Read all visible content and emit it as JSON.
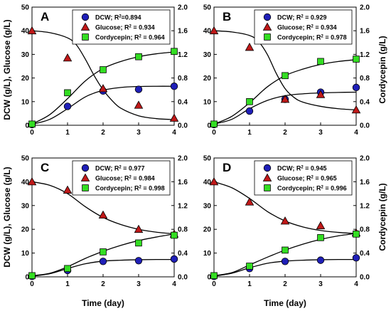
{
  "figure": {
    "left_axis_label": "DCW (g/L), Glucose (g/L)",
    "right_axis_label": "Cordycepin (g/L)",
    "x_axis_label": "Time (day)"
  },
  "colors": {
    "dcw": "#1f1fb8",
    "glucose": "#c01818",
    "cordycepin": "#33dd22",
    "line": "#000000"
  },
  "chart_data": [
    {
      "type": "scatter",
      "panel": "A",
      "xlabel": "Time (day)",
      "ylabel": "DCW (g/L), Glucose (g/L)",
      "y2label": "Cordycepin (g/L)",
      "xlim": [
        0,
        4
      ],
      "ylim": [
        0,
        50
      ],
      "y2lim": [
        0,
        2.0
      ],
      "x_ticks": [
        "0",
        "1",
        "2",
        "3",
        "4"
      ],
      "y_ticks": [
        "0",
        "10",
        "20",
        "30",
        "40",
        "50"
      ],
      "y2_ticks": [
        "0.0",
        "0.4",
        "0.8",
        "1.2",
        "1.6",
        "2.0"
      ],
      "legend_position": "top-right",
      "series": [
        {
          "key": "dcw",
          "name": "DCW; R2=0.894",
          "axis": "left",
          "marker": "circle",
          "x": [
            0,
            1,
            2,
            3,
            4
          ],
          "values": [
            0.3,
            8,
            14.5,
            15.2,
            16.5
          ],
          "fit": [
            [
              0,
              0.4
            ],
            [
              0.5,
              2.5
            ],
            [
              1,
              7
            ],
            [
              1.5,
              12
            ],
            [
              2,
              14.8
            ],
            [
              2.5,
              16
            ],
            [
              3,
              16.4
            ],
            [
              3.5,
              16.5
            ],
            [
              4,
              16.5
            ]
          ]
        },
        {
          "key": "glucose",
          "name": "Glucose; R2 = 0.934",
          "axis": "left",
          "marker": "triangle",
          "x": [
            0,
            1,
            2,
            3,
            4
          ],
          "values": [
            40,
            28.5,
            15.5,
            8.5,
            3
          ],
          "fit": [
            [
              0,
              40
            ],
            [
              0.5,
              39.2
            ],
            [
              1,
              37
            ],
            [
              1.25,
              34
            ],
            [
              1.5,
              28
            ],
            [
              1.75,
              21
            ],
            [
              2,
              15
            ],
            [
              2.25,
              10.5
            ],
            [
              2.5,
              7.2
            ],
            [
              3,
              4
            ],
            [
              3.5,
              2.8
            ],
            [
              4,
              2.4
            ]
          ]
        },
        {
          "key": "cordycepin",
          "name": "Cordycepin; R2 = 0.964",
          "axis": "right",
          "marker": "square",
          "x": [
            0,
            1,
            2,
            3,
            4
          ],
          "values": [
            0.02,
            0.55,
            0.94,
            1.16,
            1.25
          ],
          "fit": [
            [
              0,
              0.02
            ],
            [
              0.5,
              0.18
            ],
            [
              1,
              0.45
            ],
            [
              1.5,
              0.75
            ],
            [
              2,
              0.96
            ],
            [
              2.5,
              1.08
            ],
            [
              3,
              1.16
            ],
            [
              3.5,
              1.21
            ],
            [
              4,
              1.24
            ]
          ]
        }
      ]
    },
    {
      "type": "scatter",
      "panel": "B",
      "xlabel": "Time (day)",
      "ylabel": "DCW (g/L), Glucose (g/L)",
      "y2label": "Cordycepin (g/L)",
      "xlim": [
        0,
        4
      ],
      "ylim": [
        0,
        50
      ],
      "y2lim": [
        0,
        2.0
      ],
      "x_ticks": [
        "0",
        "1",
        "2",
        "3",
        "4"
      ],
      "y_ticks": [
        "0",
        "10",
        "20",
        "30",
        "40",
        "50"
      ],
      "y2_ticks": [
        "0.0",
        "0.4",
        "0.8",
        "1.2",
        "1.6",
        "2.0"
      ],
      "legend_position": "top-right",
      "series": [
        {
          "key": "dcw",
          "name": "DCW; R2 = 0.929",
          "axis": "left",
          "marker": "circle",
          "x": [
            0,
            1,
            2,
            3,
            4
          ],
          "values": [
            0.3,
            6,
            11,
            14,
            16
          ],
          "fit": [
            [
              0,
              0.5
            ],
            [
              0.5,
              2.5
            ],
            [
              1,
              7
            ],
            [
              1.5,
              10.5
            ],
            [
              2,
              12.5
            ],
            [
              2.5,
              13.3
            ],
            [
              3,
              13.7
            ],
            [
              3.5,
              13.9
            ],
            [
              4,
              14
            ]
          ]
        },
        {
          "key": "glucose",
          "name": "Glucose; R2 = 0.934",
          "axis": "left",
          "marker": "triangle",
          "x": [
            0,
            1,
            2,
            3,
            4
          ],
          "values": [
            40,
            33,
            11,
            13,
            6.5
          ],
          "fit": [
            [
              0,
              40
            ],
            [
              0.5,
              39.5
            ],
            [
              1,
              38
            ],
            [
              1.25,
              35.5
            ],
            [
              1.5,
              30
            ],
            [
              1.75,
              22
            ],
            [
              2,
              15.5
            ],
            [
              2.25,
              11.8
            ],
            [
              2.5,
              9.8
            ],
            [
              3,
              8
            ],
            [
              3.5,
              7
            ],
            [
              4,
              6.5
            ]
          ]
        },
        {
          "key": "cordycepin",
          "name": "Cordycepin; R2 = 0.978",
          "axis": "right",
          "marker": "square",
          "x": [
            0,
            1,
            2,
            3,
            4
          ],
          "values": [
            0.02,
            0.4,
            0.84,
            1.08,
            1.12
          ],
          "fit": [
            [
              0,
              0.02
            ],
            [
              0.5,
              0.15
            ],
            [
              1,
              0.38
            ],
            [
              1.5,
              0.65
            ],
            [
              2,
              0.84
            ],
            [
              2.5,
              0.95
            ],
            [
              3,
              1.03
            ],
            [
              3.5,
              1.08
            ],
            [
              4,
              1.11
            ]
          ]
        }
      ]
    },
    {
      "type": "scatter",
      "panel": "C",
      "xlabel": "Time (day)",
      "ylabel": "DCW (g/L), Glucose (g/L)",
      "y2label": "Cordycepin (g/L)",
      "xlim": [
        0,
        4
      ],
      "ylim": [
        0,
        50
      ],
      "y2lim": [
        0,
        2.0
      ],
      "x_ticks": [
        "0",
        "1",
        "2",
        "3",
        "4"
      ],
      "y_ticks": [
        "0",
        "10",
        "20",
        "30",
        "40",
        "50"
      ],
      "y2_ticks": [
        "0.0",
        "0.4",
        "0.8",
        "1.2",
        "1.6",
        "2.0"
      ],
      "legend_position": "top-right",
      "series": [
        {
          "key": "dcw",
          "name": "DCW; R2 = 0.977",
          "axis": "left",
          "marker": "circle",
          "x": [
            0,
            1,
            2,
            3,
            4
          ],
          "values": [
            0.2,
            2.7,
            6.5,
            6.8,
            7.5
          ],
          "fit": [
            [
              0,
              0.3
            ],
            [
              0.5,
              1.3
            ],
            [
              1,
              3.5
            ],
            [
              1.5,
              5.5
            ],
            [
              2,
              6.6
            ],
            [
              2.5,
              7
            ],
            [
              3,
              7.2
            ],
            [
              3.5,
              7.3
            ],
            [
              4,
              7.3
            ]
          ]
        },
        {
          "key": "glucose",
          "name": "Glucose; R2 = 0.984",
          "axis": "left",
          "marker": "triangle",
          "x": [
            0,
            1,
            2,
            3,
            4
          ],
          "values": [
            40,
            36.5,
            26,
            20,
            18
          ],
          "fit": [
            [
              0,
              40
            ],
            [
              0.5,
              38.5
            ],
            [
              1,
              35
            ],
            [
              1.5,
              29.5
            ],
            [
              2,
              25
            ],
            [
              2.5,
              22
            ],
            [
              3,
              20
            ],
            [
              3.5,
              18.8
            ],
            [
              4,
              18.1
            ]
          ]
        },
        {
          "key": "cordycepin",
          "name": "Cordycepin; R2 = 0.998",
          "axis": "right",
          "marker": "square",
          "x": [
            0,
            1,
            2,
            3,
            4
          ],
          "values": [
            0.02,
            0.14,
            0.42,
            0.57,
            0.7
          ],
          "fit": [
            [
              0,
              0.02
            ],
            [
              0.5,
              0.06
            ],
            [
              1,
              0.17
            ],
            [
              1.5,
              0.31
            ],
            [
              2,
              0.43
            ],
            [
              2.5,
              0.53
            ],
            [
              3,
              0.61
            ],
            [
              3.5,
              0.67
            ],
            [
              4,
              0.72
            ]
          ]
        }
      ]
    },
    {
      "type": "scatter",
      "panel": "D",
      "xlabel": "Time (day)",
      "ylabel": "DCW (g/L), Glucose (g/L)",
      "y2label": "Cordycepin (g/L)",
      "xlim": [
        0,
        4
      ],
      "ylim": [
        0,
        50
      ],
      "y2lim": [
        0,
        2.0
      ],
      "x_ticks": [
        "0",
        "1",
        "2",
        "3",
        "4"
      ],
      "y_ticks": [
        "0",
        "10",
        "20",
        "30",
        "40",
        "50"
      ],
      "y2_ticks": [
        "0.0",
        "0.4",
        "0.8",
        "1.2",
        "1.6",
        "2.0"
      ],
      "legend_position": "top-right",
      "series": [
        {
          "key": "dcw",
          "name": "DCW; R2 = 0.945",
          "axis": "left",
          "marker": "circle",
          "x": [
            0,
            1,
            2,
            3,
            4
          ],
          "values": [
            0.2,
            3.5,
            6.5,
            7,
            8
          ],
          "fit": [
            [
              0,
              0.3
            ],
            [
              0.5,
              1.5
            ],
            [
              1,
              3.8
            ],
            [
              1.5,
              5.7
            ],
            [
              2,
              6.6
            ],
            [
              2.5,
              7
            ],
            [
              3,
              7.2
            ],
            [
              3.5,
              7.3
            ],
            [
              4,
              7.3
            ]
          ]
        },
        {
          "key": "glucose",
          "name": "Glucose; R2 = 0.965",
          "axis": "left",
          "marker": "triangle",
          "x": [
            0,
            1,
            2,
            3,
            4
          ],
          "values": [
            40,
            31.5,
            23.5,
            21.5,
            18.5
          ],
          "fit": [
            [
              0,
              40
            ],
            [
              0.5,
              37.5
            ],
            [
              1,
              33
            ],
            [
              1.5,
              27.5
            ],
            [
              2,
              23.5
            ],
            [
              2.5,
              21
            ],
            [
              3,
              19.5
            ],
            [
              3.5,
              18.7
            ],
            [
              4,
              18.2
            ]
          ]
        },
        {
          "key": "cordycepin",
          "name": "Cordycepin; R2 = 0.996",
          "axis": "right",
          "marker": "square",
          "x": [
            0,
            1,
            2,
            3,
            4
          ],
          "values": [
            0.02,
            0.18,
            0.45,
            0.66,
            0.72
          ],
          "fit": [
            [
              0,
              0.02
            ],
            [
              0.5,
              0.07
            ],
            [
              1,
              0.2
            ],
            [
              1.5,
              0.33
            ],
            [
              2,
              0.45
            ],
            [
              2.5,
              0.55
            ],
            [
              3,
              0.63
            ],
            [
              3.5,
              0.69
            ],
            [
              4,
              0.73
            ]
          ]
        }
      ]
    }
  ]
}
